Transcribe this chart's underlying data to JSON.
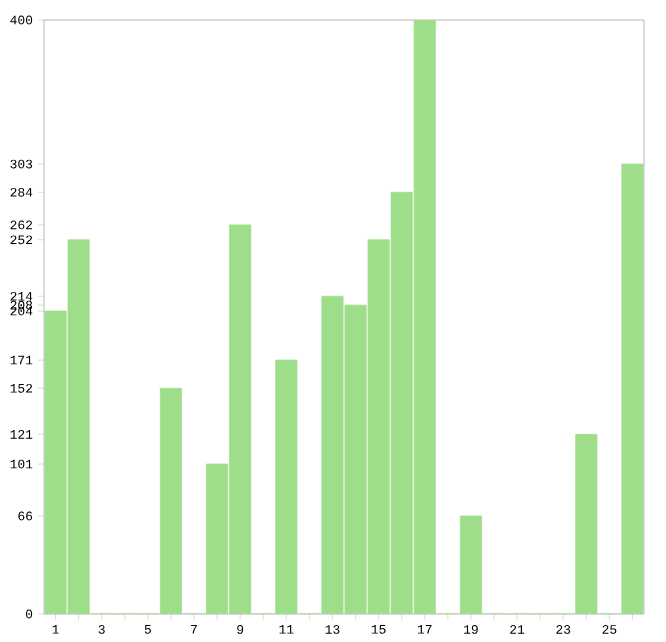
{
  "chart_data": {
    "type": "bar",
    "categories": [
      "1",
      null,
      "3",
      null,
      "5",
      null,
      "7",
      null,
      "9",
      null,
      "11",
      null,
      "13",
      null,
      "15",
      null,
      "17",
      null,
      "19",
      null,
      "21",
      null,
      "23",
      null,
      "25",
      null
    ],
    "values": [
      204,
      252,
      0,
      0,
      0,
      152,
      0,
      101,
      262,
      0,
      171,
      0,
      214,
      208,
      252,
      284,
      400,
      0,
      66,
      0,
      0,
      0,
      0,
      121,
      0,
      303
    ],
    "color": "#9ede8a",
    "ylim": [
      0,
      400
    ],
    "yticks": [
      0,
      66,
      101,
      121,
      152,
      171,
      204,
      208,
      214,
      252,
      262,
      284,
      303,
      400
    ],
    "grid": false
  }
}
